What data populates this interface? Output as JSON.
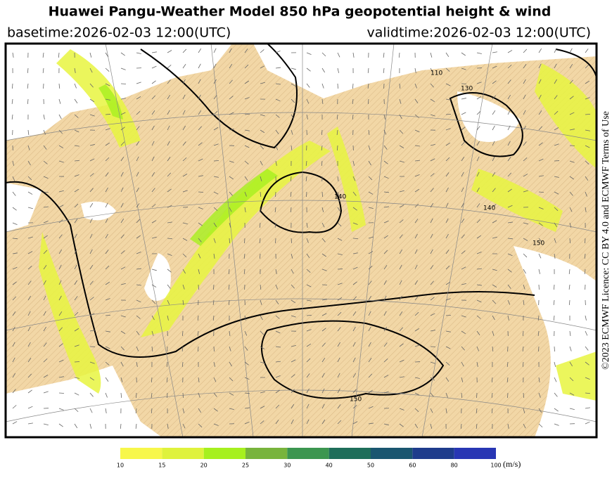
{
  "header": {
    "title": "Huawei Pangu-Weather Model 850 hPa geopotential height & wind",
    "basetime": "basetime:2026-02-03 12:00(UTC)",
    "validtime": "validtime:2026-02-03 12:00(UTC)"
  },
  "licence": "©2023 ECMWF Licence: CC BY 4.0 and ECMWF Terms of Use",
  "contour_labels": [
    "110",
    "130",
    "140",
    "140",
    "150",
    "150"
  ],
  "colorbar": {
    "ticks": [
      10,
      15,
      20,
      25,
      30,
      40,
      50,
      60,
      80,
      100
    ],
    "colors": [
      "#f7f74a",
      "#dff23c",
      "#a6f01e",
      "#78b43c",
      "#3c9650",
      "#1e6e5a",
      "#1a5670",
      "#1e3c8c",
      "#2836b4"
    ],
    "unit": "(m/s)"
  }
}
